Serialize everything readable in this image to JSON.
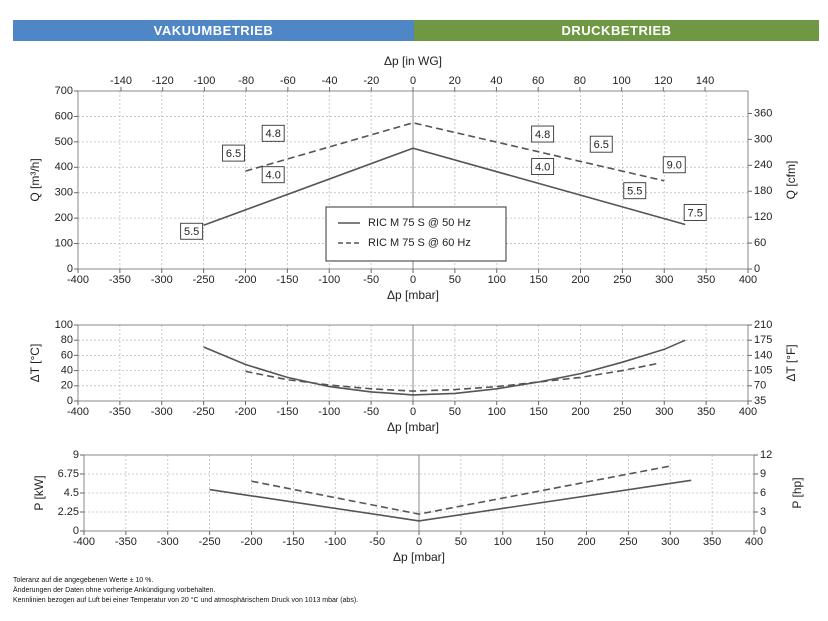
{
  "banners": {
    "left": {
      "label": "VAKUUMBETRIEB",
      "color": "#4f86c6"
    },
    "right": {
      "label": "DRUCKBETRIEB",
      "color": "#6e9844"
    }
  },
  "legend": {
    "s50": "RIC M 75 S @ 50 Hz",
    "s60": "RIC M 75 S @ 60 Hz"
  },
  "footnotes": [
    "Toleranz auf die angegebenen Werte ± 10 %.",
    "Änderungen der Daten ohne vorherige Ankündigung vorbehalten.",
    "Kennlinien bezogen auf Luft bei einer Temperatur von 20 °C und atmosphärischem Druck von 1013 mbar (abs)."
  ],
  "colors": {
    "line": "#555555",
    "grid": "#bdbdbd",
    "zero_line": "#888888"
  },
  "chart_data": [
    {
      "type": "line",
      "title": "",
      "xlabel": "Δp [mbar]",
      "ylabel": "Q [m³/h]",
      "y2label": "Q [cfm]",
      "x2label": "Δp [in WG]",
      "xlim": [
        -400,
        400
      ],
      "ylim": [
        0,
        700
      ],
      "y2lim": [
        0,
        412
      ],
      "x2lim": [
        -160.6,
        160.6
      ],
      "xticks": [
        -400,
        -350,
        -300,
        -250,
        -200,
        -150,
        -100,
        -50,
        0,
        50,
        100,
        150,
        200,
        250,
        300,
        350,
        400
      ],
      "yticks": [
        0,
        100,
        200,
        300,
        400,
        500,
        600,
        700
      ],
      "y2ticks": [
        0,
        60,
        120,
        180,
        240,
        300,
        360
      ],
      "x2ticks": [
        -140,
        -120,
        -100,
        -80,
        -60,
        -40,
        -20,
        0,
        20,
        40,
        60,
        80,
        100,
        120,
        140
      ],
      "grid": true,
      "legend_position": "center-left",
      "series": [
        {
          "name": "RIC M 75 S @ 50 Hz",
          "dash": "solid",
          "x": [
            -250,
            0,
            325
          ],
          "y": [
            172,
            475,
            175
          ]
        },
        {
          "name": "RIC M 75 S @ 60 Hz",
          "dash": "dashed",
          "x": [
            -200,
            0,
            300
          ],
          "y": [
            385,
            575,
            347
          ]
        }
      ],
      "annotations": [
        {
          "text": "5.5",
          "x": -250,
          "y": 172
        },
        {
          "text": "4.0",
          "x": -155,
          "y": 300
        },
        {
          "text": "6.5",
          "x": -200,
          "y": 385
        },
        {
          "text": "4.8",
          "x": -155,
          "y": 455
        },
        {
          "text": "4.8",
          "x": 150,
          "y": 460
        },
        {
          "text": "4.0",
          "x": 150,
          "y": 340
        },
        {
          "text": "6.5",
          "x": 220,
          "y": 420
        },
        {
          "text": "5.5",
          "x": 260,
          "y": 245
        },
        {
          "text": "9.0",
          "x": 300,
          "y": 347
        },
        {
          "text": "7.5",
          "x": 325,
          "y": 175
        }
      ]
    },
    {
      "type": "line",
      "title": "",
      "xlabel": "Δp [mbar]",
      "ylabel": "ΔT [°C]",
      "y2label": "ΔT [°F]",
      "xlim": [
        -400,
        400
      ],
      "ylim": [
        0,
        100
      ],
      "y2lim": [
        35,
        210
      ],
      "xticks": [
        -400,
        -350,
        -300,
        -250,
        -200,
        -150,
        -100,
        -50,
        0,
        50,
        100,
        150,
        200,
        250,
        300,
        350,
        400
      ],
      "yticks": [
        0,
        20,
        40,
        60,
        80,
        100
      ],
      "y2ticks": [
        35,
        70,
        105,
        140,
        175,
        210
      ],
      "grid": true,
      "series": [
        {
          "name": "RIC M 75 S @ 50 Hz",
          "dash": "solid",
          "x": [
            -250,
            -200,
            -150,
            -100,
            -50,
            0,
            50,
            100,
            150,
            200,
            250,
            300,
            325
          ],
          "y": [
            71,
            48,
            31,
            19,
            12,
            8,
            10,
            16,
            25,
            36,
            51,
            68,
            80
          ]
        },
        {
          "name": "RIC M 75 S @ 60 Hz",
          "dash": "dashed",
          "x": [
            -200,
            -150,
            -100,
            -50,
            0,
            50,
            100,
            150,
            200,
            250,
            295
          ],
          "y": [
            39,
            28,
            21,
            16,
            13,
            15,
            19,
            25,
            31,
            40,
            50
          ]
        }
      ]
    },
    {
      "type": "line",
      "title": "",
      "xlabel": "Δp [mbar]",
      "ylabel": "P [kW]",
      "y2label": "P [hp]",
      "xlim": [
        -400,
        400
      ],
      "ylim": [
        0,
        9
      ],
      "y2lim": [
        0,
        12
      ],
      "xticks": [
        -400,
        -350,
        -300,
        -250,
        -200,
        -150,
        -100,
        -50,
        0,
        50,
        100,
        150,
        200,
        250,
        300,
        350,
        400
      ],
      "yticks": [
        0,
        2.25,
        4.5,
        6.75,
        9
      ],
      "y2ticks": [
        0,
        3,
        6,
        9,
        12
      ],
      "grid": true,
      "series": [
        {
          "name": "RIC M 75 S @ 50 Hz",
          "dash": "solid",
          "x": [
            -250,
            0,
            325
          ],
          "y": [
            4.9,
            1.2,
            6.0
          ]
        },
        {
          "name": "RIC M 75 S @ 60 Hz",
          "dash": "dashed",
          "x": [
            -200,
            0,
            300
          ],
          "y": [
            5.9,
            2.0,
            7.7
          ]
        }
      ]
    }
  ]
}
